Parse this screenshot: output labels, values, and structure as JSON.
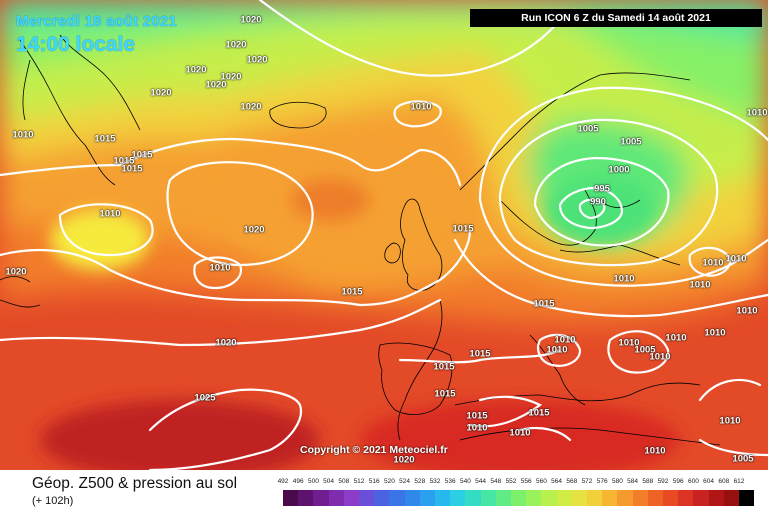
{
  "header": {
    "date_title": "Mercredi 18 août 2021",
    "time_title": "14:00 locale",
    "run_banner": "Run ICON 6 Z du Samedi 14 août 2021"
  },
  "copyright": "Copyright © 2021 Meteociel.fr",
  "footer": {
    "title": "Géop. Z500 & pression au sol",
    "subtitle": "(+ 102h)"
  },
  "isobar_labels": [
    "1020",
    "1020",
    "1020",
    "1020",
    "1020",
    "1020",
    "1020",
    "1020",
    "1010",
    "1015",
    "1015",
    "1015",
    "1015",
    "1010",
    "1010",
    "1020",
    "1010",
    "1020",
    "1015",
    "1015",
    "1020",
    "1025",
    "1010",
    "1005",
    "1005",
    "1000",
    "995",
    "990",
    "1010",
    "1015",
    "1010",
    "1010",
    "1010",
    "1010",
    "1010",
    "1015",
    "1015",
    "1015",
    "1015",
    "1015",
    "1010",
    "1010",
    "1010",
    "1005",
    "1010",
    "1010",
    "1010",
    "1010",
    "1010",
    "1010",
    "1005",
    "1020"
  ],
  "legend": {
    "ticks": [
      "492",
      "496",
      "500",
      "504",
      "508",
      "512",
      "516",
      "520",
      "524",
      "528",
      "532",
      "536",
      "540",
      "544",
      "548",
      "552",
      "556",
      "560",
      "564",
      "568",
      "572",
      "576",
      "580",
      "584",
      "588",
      "592",
      "596",
      "600",
      "604",
      "608",
      "612"
    ],
    "colors": [
      "#4b0a4b",
      "#5d136e",
      "#6f1d90",
      "#7f2cae",
      "#8c3cc8",
      "#6b4fd8",
      "#4d62e0",
      "#3a74e6",
      "#2f88ea",
      "#2aa0ee",
      "#27b8ee",
      "#2bcee2",
      "#35dcc4",
      "#48e6a4",
      "#60ec84",
      "#7cf06a",
      "#9af25a",
      "#b8f04e",
      "#d2ec46",
      "#e6e240",
      "#f2d03a",
      "#f6b634",
      "#f49a2e",
      "#f27e2a",
      "#ee6226",
      "#e84a24",
      "#dc3424",
      "#c82222",
      "#b01616",
      "#961010",
      "#000000"
    ]
  },
  "colors": {
    "title_cyan": "#3fd8ff",
    "isobar_white": "#ffffff",
    "coast_black": "#000000"
  }
}
